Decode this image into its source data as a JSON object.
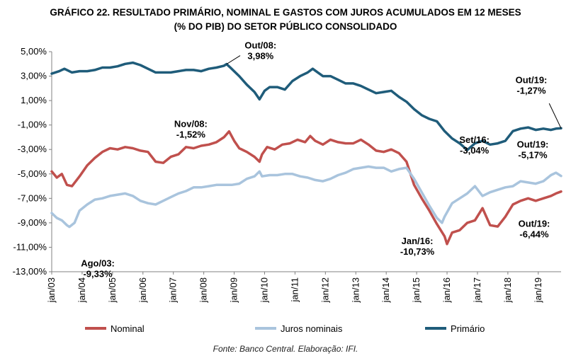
{
  "title": {
    "line1": "GRÁFICO 22. RESULTADO PRIMÁRIO, NOMINAL E GASTOS COM JUROS ACUMULADOS EM 12 MESES",
    "line2": "(% DO PIB) DO SETOR PÚBLICO CONSOLIDADO"
  },
  "source": "Fonte: Banco Central. Elaboração: IFI.",
  "chart_data": {
    "type": "line",
    "title": "GRÁFICO 22. RESULTADO PRIMÁRIO, NOMINAL E GASTOS COM JUROS ACUMULADOS EM 12 MESES (% DO PIB) DO SETOR PÚBLICO CONSOLIDADO",
    "xlabel": "",
    "ylabel": "",
    "ylim": [
      -13,
      5
    ],
    "yticks": [
      5,
      3,
      1,
      -1,
      -3,
      -5,
      -7,
      -9,
      -11,
      -13
    ],
    "ytick_labels": [
      "5,00%",
      "3,00%",
      "1,00%",
      "-1,00%",
      "-3,00%",
      "-5,00%",
      "-7,00%",
      "-9,00%",
      "-11,00%",
      "-13,00%"
    ],
    "xlim": [
      "2003-01",
      "2019-10"
    ],
    "xtick_labels": [
      "jan/03",
      "jan/04",
      "jan/05",
      "jan/06",
      "jan/07",
      "jan/08",
      "jan/09",
      "jan/10",
      "jan/11",
      "jan/12",
      "jan/13",
      "jan/14",
      "jan/15",
      "jan/16",
      "jan/17",
      "jan/18",
      "jan/19"
    ],
    "grid": false,
    "legend_position": "bottom",
    "series": [
      {
        "name": "Nominal",
        "color": "#c0504d",
        "points": [
          [
            "2003-01",
            -4.8
          ],
          [
            "2003-03",
            -5.3
          ],
          [
            "2003-05",
            -5.0
          ],
          [
            "2003-07",
            -5.9
          ],
          [
            "2003-09",
            -6.0
          ],
          [
            "2003-12",
            -5.2
          ],
          [
            "2004-03",
            -4.3
          ],
          [
            "2004-06",
            -3.7
          ],
          [
            "2004-09",
            -3.2
          ],
          [
            "2004-12",
            -2.9
          ],
          [
            "2005-03",
            -3.0
          ],
          [
            "2005-06",
            -2.8
          ],
          [
            "2005-09",
            -2.9
          ],
          [
            "2005-12",
            -3.1
          ],
          [
            "2006-03",
            -3.2
          ],
          [
            "2006-06",
            -4.0
          ],
          [
            "2006-09",
            -4.1
          ],
          [
            "2006-12",
            -3.6
          ],
          [
            "2007-03",
            -3.4
          ],
          [
            "2007-06",
            -2.8
          ],
          [
            "2007-09",
            -2.9
          ],
          [
            "2007-12",
            -2.7
          ],
          [
            "2008-03",
            -2.6
          ],
          [
            "2008-06",
            -2.4
          ],
          [
            "2008-09",
            -2.0
          ],
          [
            "2008-11",
            -1.52
          ],
          [
            "2009-01",
            -2.3
          ],
          [
            "2009-03",
            -2.9
          ],
          [
            "2009-06",
            -3.2
          ],
          [
            "2009-09",
            -3.6
          ],
          [
            "2009-11",
            -4.0
          ],
          [
            "2009-12",
            -3.4
          ],
          [
            "2010-02",
            -2.8
          ],
          [
            "2010-05",
            -3.0
          ],
          [
            "2010-08",
            -2.6
          ],
          [
            "2010-11",
            -2.5
          ],
          [
            "2011-02",
            -2.2
          ],
          [
            "2011-05",
            -2.4
          ],
          [
            "2011-07",
            -1.9
          ],
          [
            "2011-09",
            -2.3
          ],
          [
            "2011-12",
            -2.6
          ],
          [
            "2012-03",
            -2.2
          ],
          [
            "2012-06",
            -2.4
          ],
          [
            "2012-09",
            -2.5
          ],
          [
            "2012-12",
            -2.5
          ],
          [
            "2013-03",
            -2.2
          ],
          [
            "2013-06",
            -2.6
          ],
          [
            "2013-09",
            -3.1
          ],
          [
            "2013-12",
            -3.2
          ],
          [
            "2014-03",
            -3.0
          ],
          [
            "2014-06",
            -3.3
          ],
          [
            "2014-09",
            -4.0
          ],
          [
            "2014-12",
            -5.9
          ],
          [
            "2015-03",
            -7.0
          ],
          [
            "2015-06",
            -8.0
          ],
          [
            "2015-09",
            -9.1
          ],
          [
            "2015-12",
            -10.1
          ],
          [
            "2016-01",
            -10.73
          ],
          [
            "2016-03",
            -9.8
          ],
          [
            "2016-06",
            -9.6
          ],
          [
            "2016-09",
            -9.0
          ],
          [
            "2016-12",
            -8.8
          ],
          [
            "2017-03",
            -7.8
          ],
          [
            "2017-06",
            -9.2
          ],
          [
            "2017-09",
            -9.3
          ],
          [
            "2017-12",
            -8.5
          ],
          [
            "2018-03",
            -7.5
          ],
          [
            "2018-06",
            -7.2
          ],
          [
            "2018-09",
            -7.0
          ],
          [
            "2018-12",
            -7.2
          ],
          [
            "2019-03",
            -7.0
          ],
          [
            "2019-06",
            -6.8
          ],
          [
            "2019-08",
            -6.6
          ],
          [
            "2019-10",
            -6.44
          ]
        ]
      },
      {
        "name": "Juros nominais",
        "color": "#a9c4dd",
        "points": [
          [
            "2003-01",
            -8.2
          ],
          [
            "2003-03",
            -8.6
          ],
          [
            "2003-05",
            -8.8
          ],
          [
            "2003-07",
            -9.2
          ],
          [
            "2003-08",
            -9.33
          ],
          [
            "2003-10",
            -9.0
          ],
          [
            "2003-12",
            -8.0
          ],
          [
            "2004-03",
            -7.5
          ],
          [
            "2004-06",
            -7.1
          ],
          [
            "2004-09",
            -7.0
          ],
          [
            "2004-12",
            -6.8
          ],
          [
            "2005-03",
            -6.7
          ],
          [
            "2005-06",
            -6.6
          ],
          [
            "2005-09",
            -6.8
          ],
          [
            "2005-12",
            -7.2
          ],
          [
            "2006-03",
            -7.4
          ],
          [
            "2006-06",
            -7.5
          ],
          [
            "2006-09",
            -7.2
          ],
          [
            "2006-12",
            -6.9
          ],
          [
            "2007-03",
            -6.6
          ],
          [
            "2007-06",
            -6.4
          ],
          [
            "2007-09",
            -6.1
          ],
          [
            "2007-12",
            -6.1
          ],
          [
            "2008-03",
            -6.0
          ],
          [
            "2008-06",
            -5.9
          ],
          [
            "2008-09",
            -5.9
          ],
          [
            "2008-12",
            -5.9
          ],
          [
            "2009-03",
            -5.8
          ],
          [
            "2009-06",
            -5.4
          ],
          [
            "2009-09",
            -5.2
          ],
          [
            "2009-11",
            -4.8
          ],
          [
            "2009-12",
            -5.2
          ],
          [
            "2010-03",
            -5.1
          ],
          [
            "2010-06",
            -5.1
          ],
          [
            "2010-09",
            -5.0
          ],
          [
            "2010-12",
            -5.0
          ],
          [
            "2011-03",
            -5.2
          ],
          [
            "2011-06",
            -5.3
          ],
          [
            "2011-09",
            -5.5
          ],
          [
            "2011-12",
            -5.6
          ],
          [
            "2012-03",
            -5.4
          ],
          [
            "2012-06",
            -5.1
          ],
          [
            "2012-09",
            -4.9
          ],
          [
            "2012-12",
            -4.6
          ],
          [
            "2013-03",
            -4.5
          ],
          [
            "2013-06",
            -4.4
          ],
          [
            "2013-09",
            -4.5
          ],
          [
            "2013-12",
            -4.5
          ],
          [
            "2014-03",
            -4.8
          ],
          [
            "2014-06",
            -4.6
          ],
          [
            "2014-09",
            -4.5
          ],
          [
            "2014-12",
            -5.4
          ],
          [
            "2015-03",
            -6.5
          ],
          [
            "2015-06",
            -7.6
          ],
          [
            "2015-09",
            -8.6
          ],
          [
            "2015-11",
            -9.0
          ],
          [
            "2015-12",
            -8.5
          ],
          [
            "2016-03",
            -7.4
          ],
          [
            "2016-06",
            -7.0
          ],
          [
            "2016-09",
            -6.6
          ],
          [
            "2016-12",
            -6.0
          ],
          [
            "2017-03",
            -6.8
          ],
          [
            "2017-06",
            -6.5
          ],
          [
            "2017-09",
            -6.3
          ],
          [
            "2017-12",
            -6.1
          ],
          [
            "2018-03",
            -6.0
          ],
          [
            "2018-06",
            -5.6
          ],
          [
            "2018-09",
            -5.7
          ],
          [
            "2018-12",
            -5.8
          ],
          [
            "2019-03",
            -5.6
          ],
          [
            "2019-06",
            -5.1
          ],
          [
            "2019-08",
            -4.9
          ],
          [
            "2019-10",
            -5.17
          ]
        ]
      },
      {
        "name": "Primário",
        "color": "#1f5c7a",
        "points": [
          [
            "2003-01",
            3.2
          ],
          [
            "2003-04",
            3.4
          ],
          [
            "2003-06",
            3.6
          ],
          [
            "2003-09",
            3.3
          ],
          [
            "2003-12",
            3.4
          ],
          [
            "2004-03",
            3.4
          ],
          [
            "2004-06",
            3.5
          ],
          [
            "2004-09",
            3.7
          ],
          [
            "2004-12",
            3.7
          ],
          [
            "2005-03",
            3.8
          ],
          [
            "2005-06",
            4.0
          ],
          [
            "2005-09",
            4.1
          ],
          [
            "2005-12",
            3.9
          ],
          [
            "2006-03",
            3.6
          ],
          [
            "2006-06",
            3.3
          ],
          [
            "2006-09",
            3.3
          ],
          [
            "2006-12",
            3.3
          ],
          [
            "2007-03",
            3.4
          ],
          [
            "2007-06",
            3.5
          ],
          [
            "2007-09",
            3.5
          ],
          [
            "2007-12",
            3.4
          ],
          [
            "2008-03",
            3.6
          ],
          [
            "2008-06",
            3.7
          ],
          [
            "2008-09",
            3.85
          ],
          [
            "2008-10",
            3.98
          ],
          [
            "2008-12",
            3.6
          ],
          [
            "2009-03",
            3.0
          ],
          [
            "2009-06",
            2.3
          ],
          [
            "2009-09",
            1.7
          ],
          [
            "2009-11",
            1.1
          ],
          [
            "2010-01",
            1.8
          ],
          [
            "2010-03",
            2.1
          ],
          [
            "2010-06",
            2.1
          ],
          [
            "2010-09",
            1.9
          ],
          [
            "2010-12",
            2.6
          ],
          [
            "2011-03",
            3.0
          ],
          [
            "2011-06",
            3.3
          ],
          [
            "2011-08",
            3.6
          ],
          [
            "2011-10",
            3.3
          ],
          [
            "2011-12",
            3.0
          ],
          [
            "2012-03",
            3.0
          ],
          [
            "2012-06",
            2.7
          ],
          [
            "2012-09",
            2.4
          ],
          [
            "2012-12",
            2.4
          ],
          [
            "2013-03",
            2.2
          ],
          [
            "2013-06",
            1.9
          ],
          [
            "2013-09",
            1.6
          ],
          [
            "2013-12",
            1.7
          ],
          [
            "2014-03",
            1.8
          ],
          [
            "2014-06",
            1.3
          ],
          [
            "2014-09",
            0.9
          ],
          [
            "2014-12",
            0.3
          ],
          [
            "2015-03",
            -0.2
          ],
          [
            "2015-06",
            -0.5
          ],
          [
            "2015-09",
            -0.7
          ],
          [
            "2015-12",
            -1.5
          ],
          [
            "2016-03",
            -2.1
          ],
          [
            "2016-06",
            -2.5
          ],
          [
            "2016-09",
            -3.04
          ],
          [
            "2016-12",
            -2.5
          ],
          [
            "2017-03",
            -2.3
          ],
          [
            "2017-06",
            -2.6
          ],
          [
            "2017-09",
            -2.5
          ],
          [
            "2017-12",
            -2.3
          ],
          [
            "2018-03",
            -1.5
          ],
          [
            "2018-06",
            -1.3
          ],
          [
            "2018-09",
            -1.2
          ],
          [
            "2018-12",
            -1.4
          ],
          [
            "2019-03",
            -1.3
          ],
          [
            "2019-06",
            -1.4
          ],
          [
            "2019-08",
            -1.3
          ],
          [
            "2019-10",
            -1.27
          ]
        ]
      }
    ],
    "annotations": [
      {
        "label": "Out/08:",
        "value": "3,98%",
        "series": "Primário",
        "at": "2008-10"
      },
      {
        "label": "Nov/08:",
        "value": "-1,52%",
        "series": "Nominal",
        "at": "2008-11"
      },
      {
        "label": "Ago/03:",
        "value": "-9,33%",
        "series": "Juros nominais",
        "at": "2003-08"
      },
      {
        "label": "Jan/16:",
        "value": "-10,73%",
        "series": "Nominal",
        "at": "2016-01"
      },
      {
        "label": "Set/16:",
        "value": "-3,04%",
        "series": "Primário",
        "at": "2016-09"
      },
      {
        "label": "Out/19:",
        "value": "-1,27%",
        "series": "Primário",
        "at": "2019-10"
      },
      {
        "label": "Out/19:",
        "value": "-5,17%",
        "series": "Juros nominais",
        "at": "2019-10"
      },
      {
        "label": "Out/19:",
        "value": "-6,44%",
        "series": "Nominal",
        "at": "2019-10"
      }
    ]
  }
}
